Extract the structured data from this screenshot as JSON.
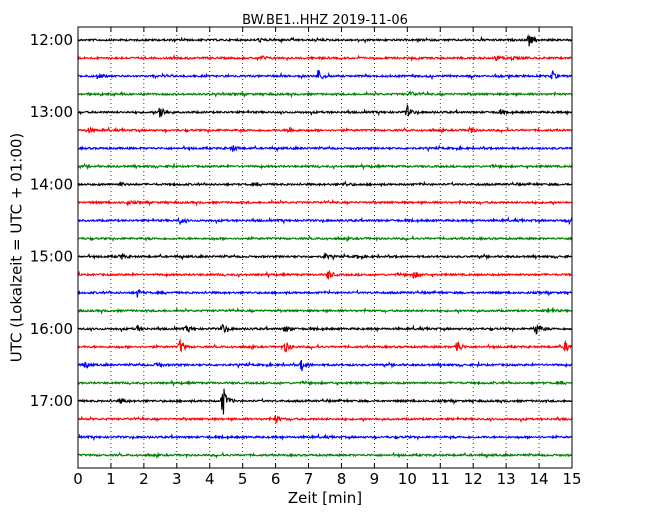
{
  "chart_data": {
    "type": "line",
    "title": "BW.BE1..HHZ 2019-11-06",
    "xlabel": "Zeit  [min]",
    "ylabel": "UTC (Lokalzeit = UTC + 01:00)",
    "xlim": [
      0,
      15
    ],
    "x_ticks": [
      "0",
      "1",
      "2",
      "3",
      "4",
      "5",
      "6",
      "7",
      "8",
      "9",
      "10",
      "11",
      "12",
      "13",
      "14",
      "15"
    ],
    "y_tick_labels": [
      "12:00",
      "13:00",
      "14:00",
      "15:00",
      "16:00",
      "17:00"
    ],
    "grid": "vertical dotted at each minute",
    "trace_interval_min": 15,
    "colors": [
      "#000000",
      "#ff0000",
      "#0000ff",
      "#008000"
    ],
    "traces": [
      {
        "start": "12:00",
        "color": "#000000",
        "events": [
          [
            5.5,
            2
          ],
          [
            13.7,
            6
          ]
        ]
      },
      {
        "start": "12:15",
        "color": "#ff0000",
        "events": [
          [
            5.6,
            2
          ],
          [
            12.7,
            2.5
          ],
          [
            13.2,
            2
          ]
        ]
      },
      {
        "start": "12:30",
        "color": "#0000ff",
        "events": [
          [
            0.6,
            3
          ],
          [
            7.3,
            7
          ],
          [
            14.4,
            4
          ]
        ]
      },
      {
        "start": "12:45",
        "color": "#008000",
        "events": [
          [
            10.1,
            3
          ]
        ]
      },
      {
        "start": "13:00",
        "color": "#000000",
        "events": [
          [
            2.5,
            9
          ],
          [
            10.0,
            6
          ],
          [
            12.8,
            2
          ]
        ]
      },
      {
        "start": "13:15",
        "color": "#ff0000",
        "events": [
          [
            0.3,
            3
          ],
          [
            6.4,
            4
          ],
          [
            11.9,
            3
          ]
        ]
      },
      {
        "start": "13:30",
        "color": "#0000ff",
        "events": [
          [
            4.7,
            3
          ]
        ]
      },
      {
        "start": "13:45",
        "color": "#008000",
        "events": []
      },
      {
        "start": "14:00",
        "color": "#000000",
        "events": [
          [
            1.3,
            2
          ],
          [
            8.1,
            2
          ]
        ]
      },
      {
        "start": "14:15",
        "color": "#ff0000",
        "events": [
          [
            1.5,
            2
          ]
        ]
      },
      {
        "start": "14:30",
        "color": "#0000ff",
        "events": [
          [
            3.1,
            3
          ],
          [
            14.9,
            3
          ]
        ]
      },
      {
        "start": "14:45",
        "color": "#008000",
        "events": []
      },
      {
        "start": "15:00",
        "color": "#000000",
        "events": [
          [
            1.3,
            3
          ],
          [
            7.5,
            3
          ],
          [
            8.5,
            2
          ]
        ]
      },
      {
        "start": "15:15",
        "color": "#ff0000",
        "events": [
          [
            7.6,
            5
          ],
          [
            10.2,
            4
          ]
        ]
      },
      {
        "start": "15:30",
        "color": "#0000ff",
        "events": [
          [
            1.8,
            4
          ]
        ]
      },
      {
        "start": "15:45",
        "color": "#008000",
        "events": [
          [
            14.3,
            3
          ]
        ]
      },
      {
        "start": "16:00",
        "color": "#000000",
        "events": [
          [
            1.8,
            3
          ],
          [
            3.3,
            3
          ],
          [
            4.4,
            5
          ],
          [
            6.3,
            4
          ],
          [
            13.9,
            7
          ]
        ]
      },
      {
        "start": "16:15",
        "color": "#ff0000",
        "events": [
          [
            3.1,
            7
          ],
          [
            6.3,
            6
          ],
          [
            11.5,
            8
          ],
          [
            14.8,
            5
          ]
        ]
      },
      {
        "start": "16:30",
        "color": "#0000ff",
        "events": [
          [
            0.2,
            3
          ],
          [
            2.4,
            3
          ],
          [
            6.8,
            6
          ]
        ]
      },
      {
        "start": "16:45",
        "color": "#008000",
        "events": []
      },
      {
        "start": "17:00",
        "color": "#000000",
        "events": [
          [
            1.3,
            3
          ],
          [
            4.4,
            16
          ]
        ]
      },
      {
        "start": "17:15",
        "color": "#ff0000",
        "events": [
          [
            6.0,
            4
          ]
        ]
      },
      {
        "start": "17:30",
        "color": "#0000ff",
        "events": []
      },
      {
        "start": "17:45",
        "color": "#008000",
        "events": []
      }
    ]
  }
}
